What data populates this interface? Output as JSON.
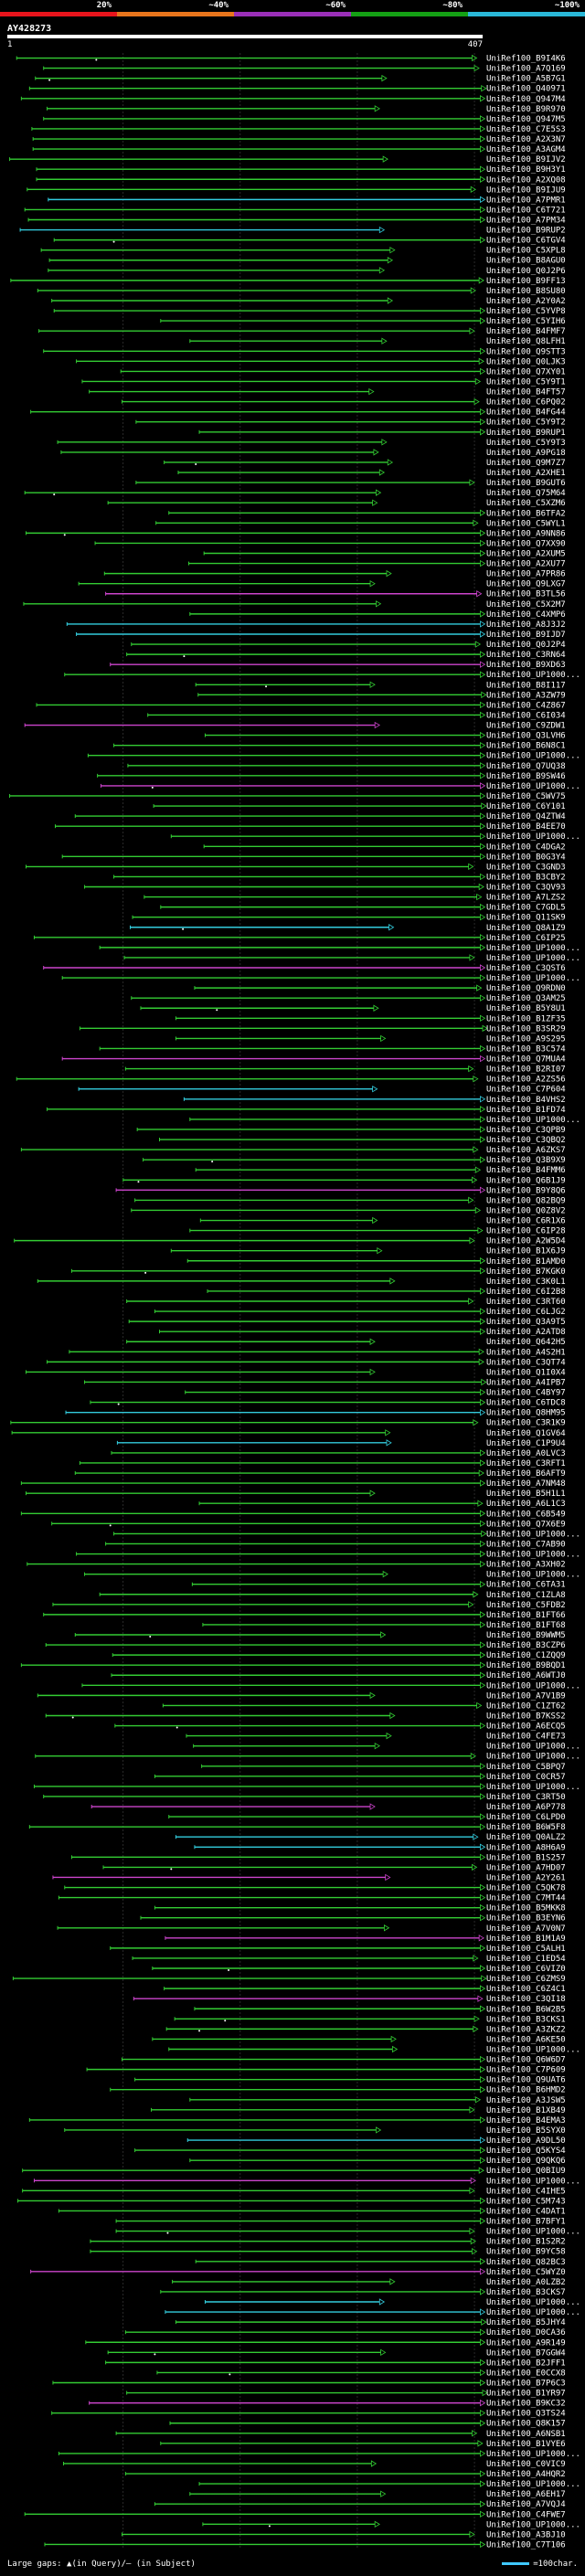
{
  "header": {
    "legend": [
      {
        "label": "20%",
        "color": "#e8141c"
      },
      {
        "label": "~40%",
        "color": "#e8751c"
      },
      {
        "label": "~60%",
        "color": "#9a2fb8"
      },
      {
        "label": "~80%",
        "color": "#14a014"
      },
      {
        "label": "~100%",
        "color": "#2ab8d8"
      }
    ],
    "query_id": "AY428273",
    "query_start": "1",
    "query_end": "407"
  },
  "footer": {
    "large_gaps": "Large gaps: ▲(in Query)/— (in Subject)",
    "scale": "=100char."
  },
  "colors": {
    "green": "#33cc33",
    "magenta": "#cc44cc",
    "cyan": "#33ccdd",
    "grey": "#555555"
  },
  "chart_data": {
    "type": "alignment-overview",
    "query_length": 407,
    "x_range": [
      1,
      407
    ],
    "row_color_pattern": [
      "green",
      "green",
      "green",
      "green",
      "green",
      "green",
      "green",
      "green",
      "green",
      "green",
      "green",
      "green",
      "green",
      "green",
      "cyan",
      "green",
      "green",
      "cyan",
      "green",
      "green",
      "green",
      "green",
      "green",
      "green",
      "green",
      "green",
      "green",
      "green",
      "green",
      "green",
      "green",
      "green",
      "green",
      "green",
      "green",
      "green",
      "green",
      "green",
      "green",
      "green",
      "green",
      "green",
      "green",
      "green",
      "green",
      "green",
      "green",
      "green",
      "green",
      "green",
      "green",
      "green",
      "green",
      "magenta",
      "green",
      "green",
      "cyan",
      "cyan",
      "green",
      "green",
      "magenta",
      "green",
      "green",
      "green",
      "green",
      "green",
      "magenta",
      "green",
      "green",
      "green",
      "green",
      "green",
      "magenta",
      "green",
      "green",
      "green",
      "green",
      "green",
      "green",
      "green",
      "green",
      "green",
      "green",
      "green",
      "green",
      "green",
      "cyan",
      "green",
      "green",
      "green",
      "magenta",
      "green",
      "green",
      "green",
      "green",
      "green",
      "green",
      "green",
      "green",
      "magenta",
      "green",
      "green",
      "cyan",
      "cyan",
      "green",
      "green",
      "green",
      "green",
      "green",
      "green",
      "green",
      "green",
      "magenta",
      "green",
      "green",
      "green",
      "green",
      "green",
      "green",
      "green"
    ],
    "hit_ids": [
      "UniRef100_B9I4K6",
      "UniRef100_A7Q169",
      "UniRef100_A5B7G1",
      "UniRef100_Q40971",
      "UniRef100_Q947M4",
      "UniRef100_B9R970",
      "UniRef100_Q947M5",
      "UniRef100_C7E5S3",
      "UniRef100_A2X3N7",
      "UniRef100_A3AGM4",
      "UniRef100_B9IJV2",
      "UniRef100_B9H3Y1",
      "UniRef100_A2XQ08",
      "UniRef100_B9IJU9",
      "UniRef100_A7PMR1",
      "UniRef100_C6T721",
      "UniRef100_A7PM34",
      "UniRef100_B9RUP2",
      "UniRef100_C6TGV4",
      "UniRef100_C5XPL8",
      "UniRef100_B8AGU0",
      "UniRef100_Q0J2P6",
      "UniRef100_B9FF13",
      "UniRef100_B8SU80",
      "UniRef100_A2Y0A2",
      "UniRef100_C5YVP8",
      "UniRef100_C5YIH6",
      "UniRef100_B4FMF7",
      "UniRef100_Q8LFH1",
      "UniRef100_Q9STT3",
      "UniRef100_Q0LJK3",
      "UniRef100_Q7XY01",
      "UniRef100_C5Y9T1",
      "UniRef100_B4FT57",
      "UniRef100_C6PQ02",
      "UniRef100_B4FG44",
      "UniRef100_C5Y9T2",
      "UniRef100_B9RUP1",
      "UniRef100_C5Y9T3",
      "UniRef100_A9PG18",
      "UniRef100_Q9M7Z7",
      "UniRef100_A2XHE1",
      "UniRef100_B9GUT6",
      "UniRef100_Q75M64",
      "UniRef100_C5XZM6",
      "UniRef100_B6TFA2",
      "UniRef100_C5WYL1",
      "UniRef100_A9NN86",
      "UniRef100_Q7XX90",
      "UniRef100_A2XUM5",
      "UniRef100_A2XU77",
      "UniRef100_A7PR86",
      "UniRef100_Q9LXG7",
      "UniRef100_B3TL56",
      "UniRef100_C5X2M7",
      "UniRef100_C4XMP6",
      "UniRef100_A8J3J2",
      "UniRef100_B9IJD7",
      "UniRef100_Q0J2P4",
      "UniRef100_C3RN64",
      "UniRef100_B9XD63",
      "UniRef100_UP1000...",
      "UniRef100_B8I117",
      "UniRef100_A3ZW79",
      "UniRef100_C4Z867",
      "UniRef100_C6I034",
      "UniRef100_C9ZDW1",
      "UniRef100_Q3LVH6",
      "UniRef100_B6N8C1",
      "UniRef100_UP1000...",
      "UniRef100_Q7UQ38",
      "UniRef100_B9SW46",
      "UniRef100_UP1000...",
      "UniRef100_C5WV75",
      "UniRef100_C6Y101",
      "UniRef100_Q4ZTW4",
      "UniRef100_B4EE70",
      "UniRef100_UP1000...",
      "UniRef100_C4DGA2",
      "UniRef100_B0G3Y4",
      "UniRef100_C3GND3",
      "UniRef100_B3CBY2",
      "UniRef100_C3QV93",
      "UniRef100_A7LZS2",
      "UniRef100_C7GDL5",
      "UniRef100_Q11SK9",
      "UniRef100_Q8A1Z9",
      "UniRef100_C6IP25",
      "UniRef100_UP1000...",
      "UniRef100_UP1000...",
      "UniRef100_C3QST6",
      "UniRef100_UP1000...",
      "UniRef100_Q9RDN0",
      "UniRef100_Q3AM25",
      "UniRef100_B5Y8U1",
      "UniRef100_B1ZF35",
      "UniRef100_B3SR29",
      "UniRef100_A9S295",
      "UniRef100_B3C574",
      "UniRef100_Q7MUA4",
      "UniRef100_B2RI07",
      "UniRef100_A2ZS56",
      "UniRef100_C7P604",
      "UniRef100_B4VHS2",
      "UniRef100_B1FD74",
      "UniRef100_UP1000...",
      "UniRef100_C3QPB9",
      "UniRef100_C3QBQ2",
      "UniRef100_A6ZKS7",
      "UniRef100_Q3B9X9",
      "UniRef100_B4FMM6",
      "UniRef100_Q6B1J9",
      "UniRef100_B9Y8Q6",
      "UniRef100_Q82BQ9",
      "UniRef100_Q0Z8V2",
      "UniRef100_C6R1X6",
      "UniRef100_C6IP28",
      "UniRef100_A2W5D4",
      "UniRef100_B1X6J9",
      "UniRef100_B1AMD0",
      "UniRef100_B7KGK0",
      "UniRef100_C3K0L1",
      "UniRef100_C6I2B8",
      "UniRef100_C3RT60",
      "UniRef100_C6LJG2",
      "UniRef100_Q3A9T5",
      "UniRef100_A2ATD8",
      "UniRef100_Q642H5",
      "UniRef100_A4S2H1",
      "UniRef100_C3QT74",
      "UniRef100_Q1I0X4",
      "UniRef100_A4IPB7",
      "UniRef100_C4BY97",
      "UniRef100_C6TDC8",
      "UniRef100_Q8HM95",
      "UniRef100_C3R1K9",
      "UniRef100_Q1GV64",
      "UniRef100_C1P9U4",
      "UniRef100_A0LVC3",
      "UniRef100_C3RFT1",
      "UniRef100_B6AFT9",
      "UniRef100_A7NM48",
      "UniRef100_B5H1L1",
      "UniRef100_A6L1C3",
      "UniRef100_C6B549",
      "UniRef100_Q7X6E9",
      "UniRef100_UP1000...",
      "UniRef100_C7AB90",
      "UniRef100_UP1000...",
      "UniRef100_A3XH02",
      "UniRef100_UP1000...",
      "UniRef100_C6TA31",
      "UniRef100_C1ZLA8",
      "UniRef100_C5FDB2",
      "UniRef100_B1FT66",
      "UniRef100_B1FT68",
      "UniRef100_B9WWM5",
      "UniRef100_B3CZP6",
      "UniRef100_C1ZQQ9",
      "UniRef100_B9BQD1",
      "UniRef100_A6WTJ0",
      "UniRef100_UP1000...",
      "UniRef100_A7V1B9",
      "UniRef100_C1ZT62",
      "UniRef100_B7KSS2",
      "UniRef100_A6ECQ5",
      "UniRef100_C4FE73",
      "UniRef100_UP1000...",
      "UniRef100_UP1000...",
      "UniRef100_C5BPQ7",
      "UniRef100_C0CR57",
      "UniRef100_UP1000...",
      "UniRef100_C3RT50",
      "UniRef100_A6P778",
      "UniRef100_C6LPD0",
      "UniRef100_B6W5F8",
      "UniRef100_Q0ALZ2",
      "UniRef100_A8H6A9",
      "UniRef100_B1S257",
      "UniRef100_A7HD07",
      "UniRef100_A2Y261",
      "UniRef100_C5QK78",
      "UniRef100_C7MT44",
      "UniRef100_B5MKK8",
      "UniRef100_B3EYN6",
      "UniRef100_A7V0N7",
      "UniRef100_B1M1A9",
      "UniRef100_C5ALH1",
      "UniRef100_C1ED54",
      "UniRef100_C6VIZ0",
      "UniRef100_C6ZMS9",
      "UniRef100_C6Z4C1",
      "UniRef100_C3QI18",
      "UniRef100_B6W2B5",
      "UniRef100_B3CKS1",
      "UniRef100_A3ZKZ2",
      "UniRef100_A6KE50",
      "UniRef100_UP1000...",
      "UniRef100_Q6W6D7",
      "UniRef100_C7P609",
      "UniRef100_Q9UAT6",
      "UniRef100_B6HMD2",
      "UniRef100_A3JSW5",
      "UniRef100_B1XB49",
      "UniRef100_B4EMA3",
      "UniRef100_B5SYX0",
      "UniRef100_A9DL50",
      "UniRef100_Q5KYS4",
      "UniRef100_Q9QKQ6",
      "UniRef100_Q0BIU9",
      "UniRef100_UP1000...",
      "UniRef100_C4IHE5",
      "UniRef100_C5M743",
      "UniRef100_C4DAT1",
      "UniRef100_B7BFY1",
      "UniRef100_UP1000...",
      "UniRef100_B1S2R2",
      "UniRef100_B9YC58",
      "UniRef100_Q82BC3",
      "UniRef100_C5WYZ0",
      "UniRef100_A0LZB2",
      "UniRef100_B3CKS7",
      "UniRef100_UP1000...",
      "UniRef100_UP1000...",
      "UniRef100_B5JHY4",
      "UniRef100_D0CA36",
      "UniRef100_A9R149",
      "UniRef100_B7GGW4",
      "UniRef100_B2JFF1",
      "UniRef100_E0CCX8",
      "UniRef100_B7P6C3",
      "UniRef100_B1YR97",
      "UniRef100_B9KC32",
      "UniRef100_Q3TS24",
      "UniRef100_Q8K157",
      "UniRef100_A6NSB1",
      "UniRef100_B1VYE6",
      "UniRef100_UP1000...",
      "UniRef100_C0VIC9",
      "UniRef100_A4HQR2",
      "UniRef100_UP1000...",
      "UniRef100_A6EH17",
      "UniRef100_A7VQJ4",
      "UniRef100_C4FWE7",
      "UniRef100_UP1000...",
      "UniRef100_A3BJ10",
      "UniRef100_C7T106"
    ]
  }
}
